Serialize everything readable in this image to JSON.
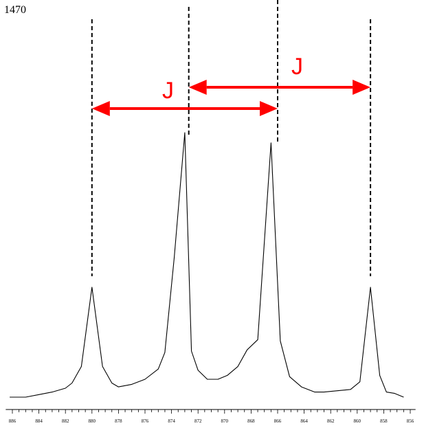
{
  "corner_label": "1470",
  "colors": {
    "spectrum": "#000000",
    "arrow": "#ff0000",
    "guide": "#000000"
  },
  "chart_data": {
    "type": "line",
    "title": "",
    "xlabel": "",
    "ylabel": "",
    "x_reversed": true,
    "xlim": [
      856,
      886
    ],
    "grid": false,
    "major_ticks": [
      886,
      884,
      882,
      880,
      878,
      876,
      874,
      872,
      870,
      868,
      866,
      864,
      862,
      860,
      858,
      856
    ],
    "minor_tick_step": 0.5,
    "tick_labels": [
      "886",
      "884",
      "882",
      "880",
      "878",
      "876",
      "874",
      "872",
      "870",
      "868",
      "866",
      "864",
      "862",
      "860",
      "858",
      "856"
    ],
    "series": [
      {
        "x": [
          886.2,
          885.0,
          884.0,
          883.0,
          882.0,
          881.5,
          880.8,
          880.0,
          879.2,
          878.5,
          878.0,
          877.0,
          876.0,
          875.0,
          874.5,
          873.8,
          873.0,
          872.5,
          872.0,
          871.3,
          870.5,
          869.8,
          869.0,
          868.3,
          867.5,
          866.5,
          865.8,
          865.1,
          864.2,
          863.2,
          862.5,
          861.5,
          860.5,
          859.8,
          859.0,
          858.3,
          857.8,
          857.2,
          856.5
        ],
        "y": [
          0.0,
          0.0,
          0.2,
          0.4,
          0.7,
          1.1,
          2.4,
          8.6,
          2.4,
          1.1,
          0.8,
          1.0,
          1.4,
          2.2,
          3.5,
          10.9,
          20.7,
          3.6,
          2.1,
          1.4,
          1.4,
          1.7,
          2.4,
          3.7,
          4.5,
          19.9,
          4.4,
          1.6,
          0.8,
          0.4,
          0.4,
          0.5,
          0.6,
          1.2,
          8.6,
          1.7,
          0.4,
          0.3,
          0.0
        ]
      }
    ],
    "guide_lines": [
      880.0,
      872.7,
      866.0,
      859.0
    ],
    "annotations": [
      {
        "text": "J",
        "from": 880.0,
        "to": 866.0
      },
      {
        "text": "J",
        "from": 872.7,
        "to": 859.0
      }
    ]
  }
}
